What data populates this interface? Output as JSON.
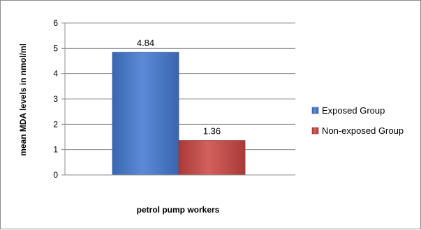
{
  "chart_data": {
    "type": "bar",
    "categories": [
      "petrol pump workers"
    ],
    "series": [
      {
        "name": "Exposed Group",
        "values": [
          4.84
        ],
        "color": "#4a7cc4"
      },
      {
        "name": "Non-exposed Group",
        "values": [
          1.36
        ],
        "color": "#c0504d"
      }
    ],
    "data_labels": [
      "4.84",
      "1.36"
    ],
    "xlabel": "petrol pump workers",
    "ylabel": "mean MDA levels in nmol/ml",
    "ylim": [
      0,
      6
    ],
    "yticks": [
      "0",
      "1",
      "2",
      "3",
      "4",
      "5",
      "6"
    ],
    "grid": true,
    "legend_position": "right"
  }
}
